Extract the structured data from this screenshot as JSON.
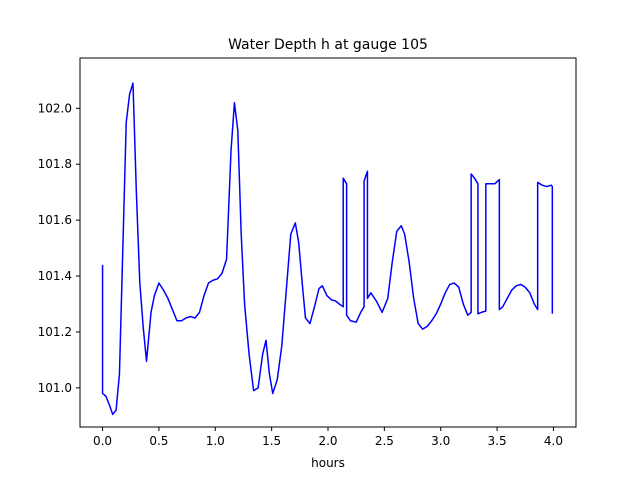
{
  "chart_data": {
    "type": "line",
    "title": "Water Depth h at gauge 105",
    "xlabel": "hours",
    "ylabel": "",
    "xlim": [
      -0.2,
      4.2
    ],
    "ylim": [
      100.86,
      102.18
    ],
    "xticks": [
      0.0,
      0.5,
      1.0,
      1.5,
      2.0,
      2.5,
      3.0,
      3.5,
      4.0
    ],
    "xtick_labels": [
      "0.0",
      "0.5",
      "1.0",
      "1.5",
      "2.0",
      "2.5",
      "3.0",
      "3.5",
      "4.0"
    ],
    "yticks": [
      101.0,
      101.2,
      101.4,
      101.6,
      101.8,
      102.0
    ],
    "ytick_labels": [
      "101.0",
      "101.2",
      "101.4",
      "101.6",
      "101.8",
      "102.0"
    ],
    "grid": false,
    "series": [
      {
        "color": "#0000ff",
        "x": [
          0.0,
          0.0,
          0.03,
          0.06,
          0.09,
          0.12,
          0.15,
          0.18,
          0.21,
          0.24,
          0.27,
          0.3,
          0.33,
          0.36,
          0.39,
          0.43,
          0.46,
          0.5,
          0.54,
          0.58,
          0.62,
          0.66,
          0.7,
          0.74,
          0.78,
          0.82,
          0.86,
          0.9,
          0.94,
          0.98,
          1.02,
          1.06,
          1.1,
          1.14,
          1.17,
          1.2,
          1.23,
          1.26,
          1.3,
          1.34,
          1.38,
          1.42,
          1.45,
          1.48,
          1.51,
          1.55,
          1.59,
          1.63,
          1.67,
          1.71,
          1.74,
          1.77,
          1.8,
          1.84,
          1.88,
          1.92,
          1.95,
          1.99,
          2.03,
          2.07,
          2.1,
          2.135,
          2.135,
          2.165,
          2.165,
          2.2,
          2.25,
          2.29,
          2.32,
          2.32,
          2.35,
          2.35,
          2.38,
          2.43,
          2.48,
          2.53,
          2.57,
          2.61,
          2.65,
          2.68,
          2.72,
          2.76,
          2.8,
          2.84,
          2.88,
          2.92,
          2.96,
          3.0,
          3.04,
          3.08,
          3.12,
          3.16,
          3.2,
          3.24,
          3.27,
          3.27,
          3.3,
          3.33,
          3.33,
          3.36,
          3.4,
          3.4,
          3.44,
          3.48,
          3.52,
          3.52,
          3.55,
          3.59,
          3.63,
          3.67,
          3.71,
          3.75,
          3.79,
          3.83,
          3.86,
          3.86,
          3.9,
          3.94,
          3.98,
          3.99,
          3.99
        ],
        "values": [
          101.44,
          100.98,
          100.97,
          100.94,
          100.905,
          100.92,
          101.05,
          101.5,
          101.95,
          102.05,
          102.09,
          101.7,
          101.38,
          101.22,
          101.095,
          101.27,
          101.33,
          101.375,
          101.35,
          101.32,
          101.28,
          101.24,
          101.24,
          101.25,
          101.255,
          101.25,
          101.27,
          101.33,
          101.375,
          101.385,
          101.39,
          101.41,
          101.46,
          101.85,
          102.02,
          101.92,
          101.55,
          101.3,
          101.12,
          100.99,
          101.0,
          101.12,
          101.17,
          101.05,
          100.98,
          101.03,
          101.15,
          101.35,
          101.55,
          101.59,
          101.52,
          101.38,
          101.25,
          101.23,
          101.29,
          101.355,
          101.365,
          101.33,
          101.315,
          101.31,
          101.3,
          101.29,
          101.75,
          101.73,
          101.26,
          101.24,
          101.235,
          101.27,
          101.29,
          101.74,
          101.775,
          101.32,
          101.34,
          101.31,
          101.27,
          101.32,
          101.45,
          101.56,
          101.58,
          101.55,
          101.45,
          101.32,
          101.23,
          101.21,
          101.22,
          101.24,
          101.265,
          101.3,
          101.34,
          101.37,
          101.375,
          101.36,
          101.3,
          101.26,
          101.27,
          101.765,
          101.75,
          101.73,
          101.265,
          101.27,
          101.275,
          101.73,
          101.73,
          101.73,
          101.745,
          101.28,
          101.29,
          101.32,
          101.35,
          101.365,
          101.37,
          101.36,
          101.34,
          101.3,
          101.28,
          101.735,
          101.725,
          101.72,
          101.725,
          101.72,
          101.265
        ]
      }
    ]
  }
}
